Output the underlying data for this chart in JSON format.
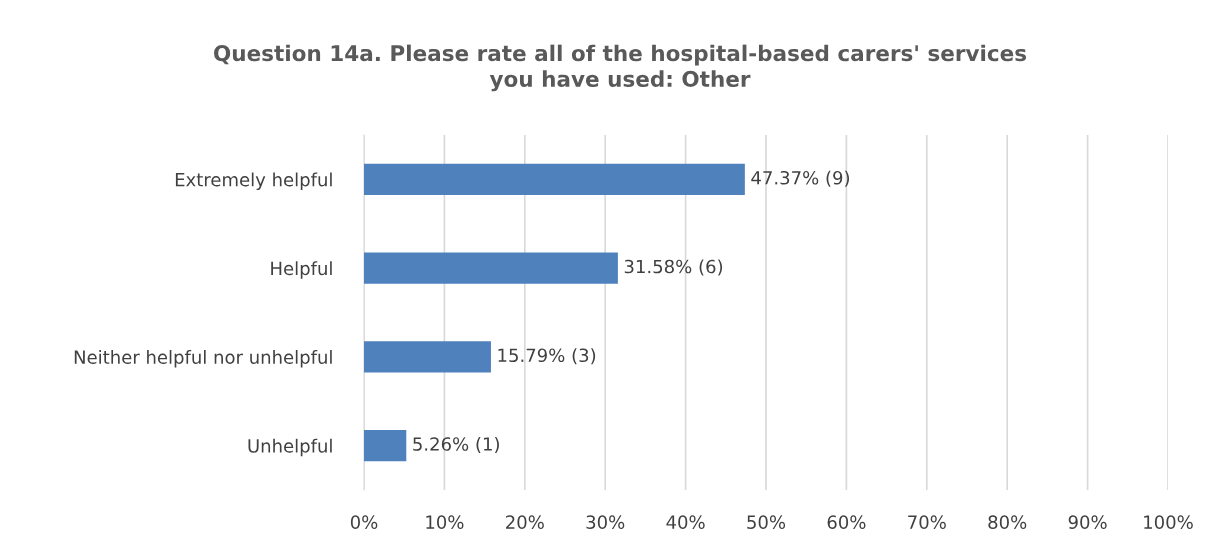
{
  "chart_data": {
    "type": "bar",
    "orientation": "horizontal",
    "title": "Question 14a. Please rate all of the hospital-based carers' services\nyou have used: Other",
    "categories": [
      "Extremely helpful",
      "Helpful",
      "Neither helpful nor unhelpful",
      "Unhelpful"
    ],
    "values": [
      47.37,
      31.58,
      15.79,
      5.26
    ],
    "value_labels": [
      "47.37% (9)",
      "31.58% (6)",
      "15.79% (3)",
      "5.26% (1)"
    ],
    "color": "#4f81bd",
    "xlim": [
      0,
      100
    ],
    "xticks": [
      {
        "value": 0,
        "label": "0%"
      },
      {
        "value": 10,
        "label": "10%"
      },
      {
        "value": 20,
        "label": "20%"
      },
      {
        "value": 30,
        "label": "30%"
      },
      {
        "value": 40,
        "label": "40%"
      },
      {
        "value": 50,
        "label": "50%"
      },
      {
        "value": 60,
        "label": "60%"
      },
      {
        "value": 70,
        "label": "70%"
      },
      {
        "value": 80,
        "label": "80%"
      },
      {
        "value": 90,
        "label": "90%"
      },
      {
        "value": 100,
        "label": "100%"
      }
    ],
    "grid": "x"
  }
}
